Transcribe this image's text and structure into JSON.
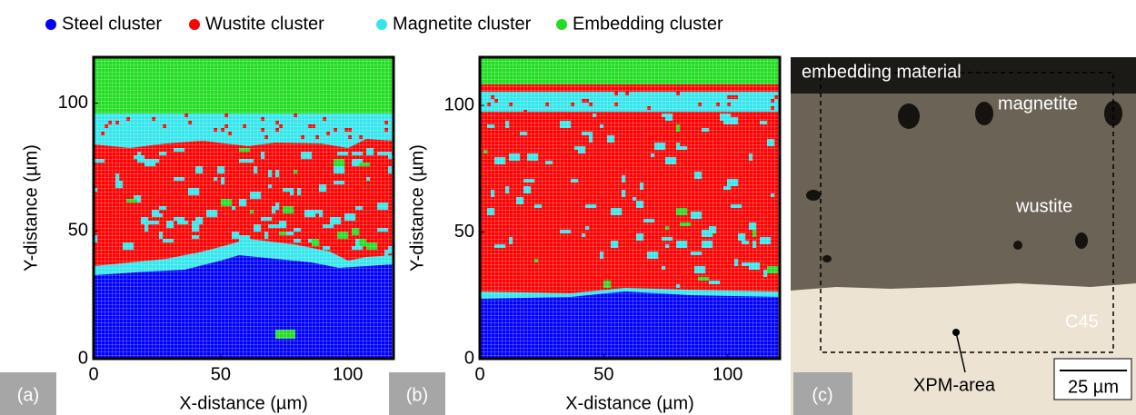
{
  "legend": [
    {
      "name": "Steel cluster",
      "color": "#0000ff"
    },
    {
      "name": "Wustite cluster",
      "color": "#ff0000"
    },
    {
      "name": "Magnetite cluster",
      "color": "#33e6ec"
    },
    {
      "name": "Embedding cluster",
      "color": "#22dd22"
    }
  ],
  "chart_data": [
    {
      "type": "heatmap",
      "panel_label": "(a)",
      "xlabel": "X-distance (µm)",
      "ylabel": "Y-distance (µm)",
      "xlim": [
        0,
        118
      ],
      "ylim": [
        0,
        118
      ],
      "xticks": [
        0,
        50,
        100
      ],
      "yticks": [
        0,
        50,
        100
      ]
    },
    {
      "type": "heatmap",
      "panel_label": "(b)",
      "xlabel": "X-distance (µm)",
      "ylabel": "Y-distance (µm)",
      "xlim": [
        0,
        121
      ],
      "ylim": [
        0,
        119
      ],
      "xticks": [
        0,
        50,
        100
      ],
      "yticks": [
        0,
        50,
        100
      ]
    }
  ],
  "photo": {
    "panel_label": "(c)",
    "labels": [
      "embedding material",
      "magnetite",
      "wustite",
      "C45",
      "XPM-area"
    ],
    "scale_bar": "25 µm"
  }
}
